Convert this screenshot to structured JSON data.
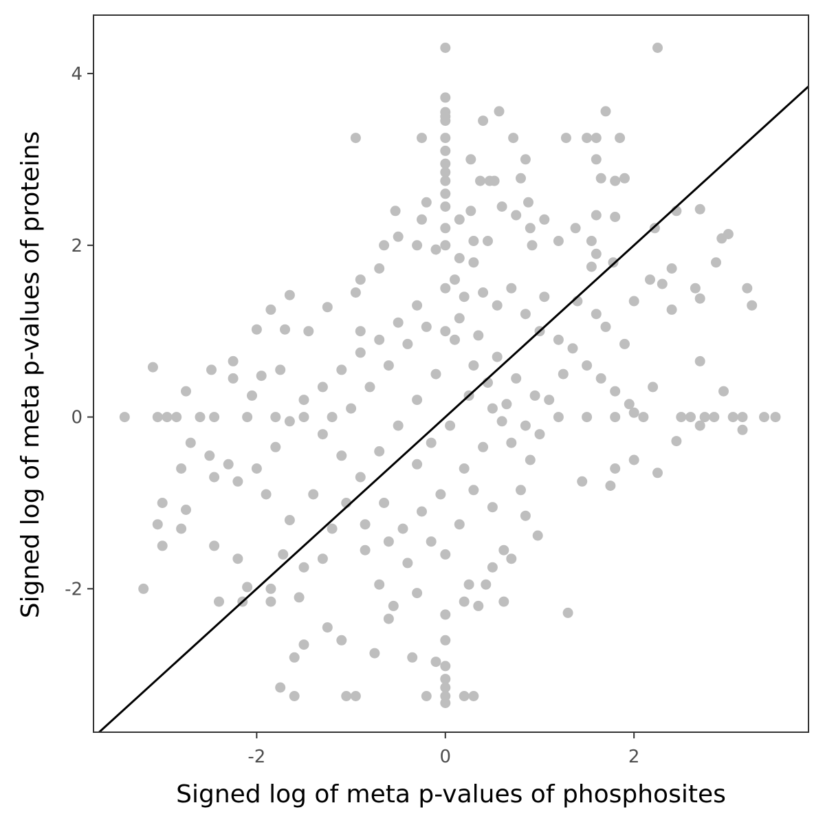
{
  "chart_data": {
    "type": "scatter",
    "title": "",
    "xlabel": "Signed log of meta p-values of phosphosites",
    "ylabel": "Signed log of meta p-values of proteins",
    "xlim": [
      -3.73,
      3.85
    ],
    "ylim": [
      -3.67,
      4.68
    ],
    "x_ticks": [
      -2,
      0,
      2
    ],
    "x_tick_labels": [
      "-2",
      "0",
      "2"
    ],
    "y_ticks": [
      -2,
      0,
      2,
      4
    ],
    "y_tick_labels": [
      "-2",
      "0",
      "2",
      "4"
    ],
    "grid": false,
    "legend": "none",
    "colors": {
      "points": "#bebebe",
      "line": "#000000",
      "panel_border": "#333333",
      "tick_label": "#4d4d4d",
      "axis_title": "#000000"
    },
    "reference_line": {
      "slope": 1,
      "intercept": 0
    },
    "series": [
      {
        "points": [
          {
            "x": 0.0,
            "y": 4.3
          },
          {
            "x": 2.25,
            "y": 4.3
          },
          {
            "x": 0.0,
            "y": 3.72
          },
          {
            "x": 0.0,
            "y": 3.55
          },
          {
            "x": 0.0,
            "y": 3.5
          },
          {
            "x": 0.0,
            "y": 3.45
          },
          {
            "x": 0.57,
            "y": 3.56
          },
          {
            "x": 1.7,
            "y": 3.56
          },
          {
            "x": 0.4,
            "y": 3.45
          },
          {
            "x": -0.95,
            "y": 3.25
          },
          {
            "x": -0.25,
            "y": 3.25
          },
          {
            "x": 0.0,
            "y": 3.25
          },
          {
            "x": 0.72,
            "y": 3.25
          },
          {
            "x": 1.28,
            "y": 3.25
          },
          {
            "x": 1.5,
            "y": 3.25
          },
          {
            "x": 1.6,
            "y": 3.25
          },
          {
            "x": 1.85,
            "y": 3.25
          },
          {
            "x": 0.0,
            "y": 3.1
          },
          {
            "x": 0.0,
            "y": 2.95
          },
          {
            "x": 0.27,
            "y": 3.0
          },
          {
            "x": 0.85,
            "y": 3.0
          },
          {
            "x": 1.6,
            "y": 3.0
          },
          {
            "x": 0.0,
            "y": 2.85
          },
          {
            "x": 0.0,
            "y": 2.75
          },
          {
            "x": 0.37,
            "y": 2.75
          },
          {
            "x": 0.47,
            "y": 2.75
          },
          {
            "x": 0.52,
            "y": 2.75
          },
          {
            "x": 0.8,
            "y": 2.78
          },
          {
            "x": 1.65,
            "y": 2.78
          },
          {
            "x": 1.8,
            "y": 2.75
          },
          {
            "x": 1.9,
            "y": 2.78
          },
          {
            "x": 0.0,
            "y": 2.6
          },
          {
            "x": 0.0,
            "y": 2.45
          },
          {
            "x": -0.2,
            "y": 2.5
          },
          {
            "x": 0.88,
            "y": 2.5
          },
          {
            "x": 0.6,
            "y": 2.45
          },
          {
            "x": -0.53,
            "y": 2.4
          },
          {
            "x": -0.25,
            "y": 2.3
          },
          {
            "x": 0.15,
            "y": 2.3
          },
          {
            "x": 0.27,
            "y": 2.4
          },
          {
            "x": 0.75,
            "y": 2.35
          },
          {
            "x": 1.05,
            "y": 2.3
          },
          {
            "x": 1.6,
            "y": 2.35
          },
          {
            "x": 1.8,
            "y": 2.33
          },
          {
            "x": 2.45,
            "y": 2.4
          },
          {
            "x": 2.7,
            "y": 2.42
          },
          {
            "x": 3.0,
            "y": 2.13
          },
          {
            "x": 2.93,
            "y": 2.08
          },
          {
            "x": 2.22,
            "y": 2.2
          },
          {
            "x": 1.38,
            "y": 2.2
          },
          {
            "x": 1.55,
            "y": 2.05
          },
          {
            "x": 0.9,
            "y": 2.2
          },
          {
            "x": -0.5,
            "y": 2.1
          },
          {
            "x": -0.3,
            "y": 2.0
          },
          {
            "x": -0.1,
            "y": 1.95
          },
          {
            "x": 0.3,
            "y": 2.05
          },
          {
            "x": 0.45,
            "y": 2.05
          },
          {
            "x": 0.92,
            "y": 2.0
          },
          {
            "x": 1.2,
            "y": 2.05
          },
          {
            "x": 1.6,
            "y": 1.9
          },
          {
            "x": -0.65,
            "y": 2.0
          },
          {
            "x": -0.7,
            "y": 1.73
          },
          {
            "x": -0.9,
            "y": 1.6
          },
          {
            "x": 0.15,
            "y": 1.85
          },
          {
            "x": 0.3,
            "y": 1.8
          },
          {
            "x": 1.55,
            "y": 1.75
          },
          {
            "x": 1.78,
            "y": 1.8
          },
          {
            "x": 2.4,
            "y": 1.73
          },
          {
            "x": 2.87,
            "y": 1.8
          },
          {
            "x": 2.3,
            "y": 1.55
          },
          {
            "x": 2.17,
            "y": 1.6
          },
          {
            "x": 3.2,
            "y": 1.5
          },
          {
            "x": 3.25,
            "y": 1.3
          },
          {
            "x": 2.7,
            "y": 1.38
          },
          {
            "x": 2.65,
            "y": 1.5
          },
          {
            "x": 2.4,
            "y": 1.25
          },
          {
            "x": 2.0,
            "y": 1.35
          },
          {
            "x": 1.05,
            "y": 1.4
          },
          {
            "x": 1.6,
            "y": 1.2
          },
          {
            "x": -0.95,
            "y": 1.45
          },
          {
            "x": -1.25,
            "y": 1.28
          },
          {
            "x": -1.65,
            "y": 1.42
          },
          {
            "x": -1.85,
            "y": 1.25
          },
          {
            "x": -1.7,
            "y": 1.02
          },
          {
            "x": -2.0,
            "y": 1.02
          },
          {
            "x": -1.45,
            "y": 1.0
          },
          {
            "x": -0.9,
            "y": 1.0
          },
          {
            "x": -2.48,
            "y": 0.55
          },
          {
            "x": -2.25,
            "y": 0.65
          },
          {
            "x": -2.25,
            "y": 0.45
          },
          {
            "x": -1.95,
            "y": 0.48
          },
          {
            "x": -1.75,
            "y": 0.55
          },
          {
            "x": -3.1,
            "y": 0.58
          },
          {
            "x": -2.75,
            "y": 0.3
          },
          {
            "x": -2.05,
            "y": 0.25
          },
          {
            "x": -2.45,
            "y": 0.0
          },
          {
            "x": -3.4,
            "y": 0.0
          },
          {
            "x": -3.05,
            "y": 0.0
          },
          {
            "x": -2.95,
            "y": 0.0
          },
          {
            "x": -2.85,
            "y": 0.0
          },
          {
            "x": -2.6,
            "y": 0.0
          },
          {
            "x": 2.5,
            "y": 0.0
          },
          {
            "x": 2.6,
            "y": 0.0
          },
          {
            "x": 2.75,
            "y": 0.0
          },
          {
            "x": 2.85,
            "y": 0.0
          },
          {
            "x": 3.05,
            "y": 0.0
          },
          {
            "x": 3.15,
            "y": 0.0
          },
          {
            "x": 3.38,
            "y": 0.0
          },
          {
            "x": 3.5,
            "y": 0.0
          },
          {
            "x": 2.7,
            "y": -0.1
          },
          {
            "x": 3.15,
            "y": -0.15
          },
          {
            "x": 2.95,
            "y": 0.3
          },
          {
            "x": 2.7,
            "y": 0.65
          },
          {
            "x": -2.8,
            "y": -0.6
          },
          {
            "x": -2.5,
            "y": -0.45
          },
          {
            "x": -2.45,
            "y": -0.7
          },
          {
            "x": -2.2,
            "y": -0.75
          },
          {
            "x": -2.3,
            "y": -0.55
          },
          {
            "x": -2.7,
            "y": -0.3
          },
          {
            "x": -3.0,
            "y": -1.0
          },
          {
            "x": -3.05,
            "y": -1.25
          },
          {
            "x": -2.8,
            "y": -1.3
          },
          {
            "x": -2.75,
            "y": -1.08
          },
          {
            "x": -3.0,
            "y": -1.5
          },
          {
            "x": -2.45,
            "y": -1.5
          },
          {
            "x": -2.2,
            "y": -1.65
          },
          {
            "x": -2.1,
            "y": -1.98
          },
          {
            "x": -1.85,
            "y": -2.0
          },
          {
            "x": -2.15,
            "y": -2.15
          },
          {
            "x": -2.4,
            "y": -2.15
          },
          {
            "x": -3.2,
            "y": -2.0
          },
          {
            "x": -1.55,
            "y": -2.1
          },
          {
            "x": -1.85,
            "y": -2.15
          },
          {
            "x": -1.6,
            "y": -2.8
          },
          {
            "x": -1.5,
            "y": -2.65
          },
          {
            "x": -1.75,
            "y": -3.15
          },
          {
            "x": -1.6,
            "y": -3.25
          },
          {
            "x": -1.05,
            "y": -3.25
          },
          {
            "x": -0.95,
            "y": -3.25
          },
          {
            "x": -0.75,
            "y": -2.75
          },
          {
            "x": -0.35,
            "y": -2.8
          },
          {
            "x": -0.2,
            "y": -3.25
          },
          {
            "x": 0.2,
            "y": -3.25
          },
          {
            "x": 0.3,
            "y": -3.25
          },
          {
            "x": -0.1,
            "y": -2.85
          },
          {
            "x": 0.0,
            "y": -2.9
          },
          {
            "x": 0.0,
            "y": -3.05
          },
          {
            "x": 0.0,
            "y": -3.15
          },
          {
            "x": 0.0,
            "y": -3.25
          },
          {
            "x": 0.0,
            "y": -3.33
          },
          {
            "x": 1.3,
            "y": -2.28
          },
          {
            "x": 0.62,
            "y": -2.15
          },
          {
            "x": 0.35,
            "y": -2.2
          },
          {
            "x": -0.6,
            "y": -2.35
          },
          {
            "x": -1.25,
            "y": -2.45
          },
          {
            "x": -1.1,
            "y": -2.6
          },
          {
            "x": 2.25,
            "y": -0.65
          },
          {
            "x": 2.45,
            "y": -0.28
          },
          {
            "x": 2.0,
            "y": -0.5
          },
          {
            "x": 1.8,
            "y": -0.6
          },
          {
            "x": 1.75,
            "y": -0.8
          },
          {
            "x": 1.45,
            "y": -0.75
          },
          {
            "x": 0.8,
            "y": -0.85
          },
          {
            "x": 0.85,
            "y": -1.15
          },
          {
            "x": 0.98,
            "y": -1.38
          },
          {
            "x": 0.7,
            "y": -1.65
          },
          {
            "x": 0.5,
            "y": -1.75
          },
          {
            "x": 0.62,
            "y": -1.55
          },
          {
            "x": 0.43,
            "y": -1.95
          },
          {
            "x": 0.25,
            "y": -1.95
          },
          {
            "x": 0.2,
            "y": -2.15
          },
          {
            "x": -0.3,
            "y": -2.05
          },
          {
            "x": -0.55,
            "y": -2.2
          },
          {
            "x": -0.7,
            "y": -1.95
          },
          {
            "x": -0.85,
            "y": -1.55
          },
          {
            "x": -1.3,
            "y": -1.65
          },
          {
            "x": -1.5,
            "y": -1.75
          },
          {
            "x": -1.72,
            "y": -1.6
          },
          {
            "x": -1.2,
            "y": -1.3
          },
          {
            "x": -1.65,
            "y": -1.2
          },
          {
            "x": -1.4,
            "y": -0.9
          },
          {
            "x": -1.9,
            "y": -0.9
          },
          {
            "x": -2.0,
            "y": -0.6
          },
          {
            "x": -1.8,
            "y": -0.35
          },
          {
            "x": -1.65,
            "y": -0.05
          },
          {
            "x": -1.5,
            "y": 0.2
          },
          {
            "x": -1.3,
            "y": 0.35
          },
          {
            "x": -1.1,
            "y": 0.55
          },
          {
            "x": -0.9,
            "y": 0.75
          },
          {
            "x": -0.7,
            "y": 0.9
          },
          {
            "x": -0.5,
            "y": 1.1
          },
          {
            "x": -0.3,
            "y": 1.3
          },
          {
            "x": 0.1,
            "y": 1.6
          },
          {
            "x": 0.2,
            "y": 1.4
          },
          {
            "x": 0.4,
            "y": 1.45
          },
          {
            "x": 0.55,
            "y": 1.3
          },
          {
            "x": 0.7,
            "y": 1.5
          },
          {
            "x": 0.85,
            "y": 1.2
          },
          {
            "x": 1.0,
            "y": 1.0
          },
          {
            "x": 1.2,
            "y": 0.9
          },
          {
            "x": 1.35,
            "y": 0.8
          },
          {
            "x": 1.5,
            "y": 0.6
          },
          {
            "x": 1.65,
            "y": 0.45
          },
          {
            "x": 1.8,
            "y": 0.3
          },
          {
            "x": 1.95,
            "y": 0.15
          },
          {
            "x": 2.1,
            "y": 0.0
          },
          {
            "x": 2.2,
            "y": 0.35
          },
          {
            "x": 1.9,
            "y": 0.85
          },
          {
            "x": 1.7,
            "y": 1.05
          },
          {
            "x": 1.4,
            "y": 1.35
          },
          {
            "x": 1.25,
            "y": 0.5
          },
          {
            "x": 1.1,
            "y": 0.2
          },
          {
            "x": 1.0,
            "y": -0.2
          },
          {
            "x": 0.9,
            "y": -0.5
          },
          {
            "x": 0.7,
            "y": -0.3
          },
          {
            "x": 0.5,
            "y": 0.1
          },
          {
            "x": 0.3,
            "y": 0.6
          },
          {
            "x": 0.1,
            "y": 0.9
          },
          {
            "x": -0.1,
            "y": 0.5
          },
          {
            "x": -0.3,
            "y": 0.2
          },
          {
            "x": -0.5,
            "y": -0.1
          },
          {
            "x": -0.7,
            "y": -0.4
          },
          {
            "x": -0.9,
            "y": -0.7
          },
          {
            "x": -1.1,
            "y": -0.45
          },
          {
            "x": -1.3,
            "y": -0.2
          },
          {
            "x": -1.0,
            "y": 0.1
          },
          {
            "x": -0.8,
            "y": 0.35
          },
          {
            "x": -0.6,
            "y": 0.6
          },
          {
            "x": -0.4,
            "y": 0.85
          },
          {
            "x": -0.2,
            "y": 1.05
          },
          {
            "x": 0.15,
            "y": 1.15
          },
          {
            "x": 0.35,
            "y": 0.95
          },
          {
            "x": 0.55,
            "y": 0.7
          },
          {
            "x": 0.75,
            "y": 0.45
          },
          {
            "x": 0.95,
            "y": 0.25
          },
          {
            "x": 0.6,
            "y": -0.05
          },
          {
            "x": 0.4,
            "y": -0.35
          },
          {
            "x": 0.2,
            "y": -0.6
          },
          {
            "x": -0.05,
            "y": -0.9
          },
          {
            "x": -0.25,
            "y": -1.1
          },
          {
            "x": -0.45,
            "y": -1.3
          },
          {
            "x": -0.65,
            "y": -1.0
          },
          {
            "x": -0.85,
            "y": -1.25
          },
          {
            "x": -1.05,
            "y": -1.0
          },
          {
            "x": -0.3,
            "y": -0.55
          },
          {
            "x": -0.15,
            "y": -0.3
          },
          {
            "x": 0.05,
            "y": -0.1
          },
          {
            "x": 0.25,
            "y": 0.25
          },
          {
            "x": 0.45,
            "y": 0.4
          },
          {
            "x": 0.65,
            "y": 0.15
          },
          {
            "x": 0.85,
            "y": -0.1
          },
          {
            "x": 0.3,
            "y": -0.85
          },
          {
            "x": 0.5,
            "y": -1.05
          },
          {
            "x": 0.15,
            "y": -1.25
          },
          {
            "x": -0.15,
            "y": -1.45
          },
          {
            "x": -0.4,
            "y": -1.7
          },
          {
            "x": -0.6,
            "y": -1.45
          },
          {
            "x": 0.0,
            "y": -1.6
          },
          {
            "x": 0.0,
            "y": -2.3
          },
          {
            "x": 0.0,
            "y": -2.6
          },
          {
            "x": 0.0,
            "y": 1.0
          },
          {
            "x": 0.0,
            "y": 1.5
          },
          {
            "x": 0.0,
            "y": 2.0
          },
          {
            "x": 0.0,
            "y": 2.2
          },
          {
            "x": -1.2,
            "y": 0.0
          },
          {
            "x": -1.5,
            "y": 0.0
          },
          {
            "x": -1.8,
            "y": 0.0
          },
          {
            "x": -2.1,
            "y": 0.0
          },
          {
            "x": 1.2,
            "y": 0.0
          },
          {
            "x": 1.5,
            "y": 0.0
          },
          {
            "x": 1.8,
            "y": 0.0
          },
          {
            "x": 2.0,
            "y": 0.05
          }
        ]
      }
    ]
  }
}
